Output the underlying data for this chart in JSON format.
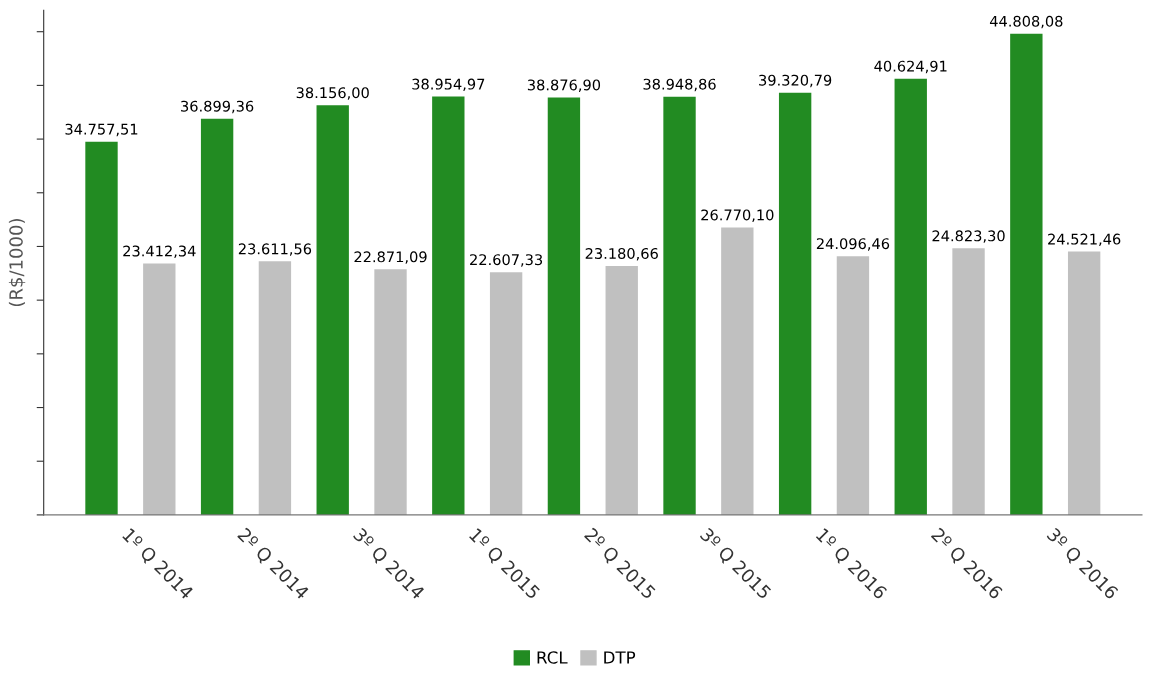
{
  "chart_data": {
    "type": "bar",
    "ylabel": "(R$/1000)",
    "categories": [
      "1º Q 2014",
      "2º Q 2014",
      "3º Q 2014",
      "1º Q 2015",
      "2º Q 2015",
      "3º Q 2015",
      "1º Q 2016",
      "2º Q 2016",
      "3º Q 2016"
    ],
    "series": [
      {
        "name": "RCL",
        "color": "#228b22",
        "values": [
          34757.51,
          36899.36,
          38156.0,
          38954.97,
          38876.9,
          38948.86,
          39320.79,
          40624.91,
          44808.08
        ],
        "value_labels": [
          "34.757,51",
          "36.899,36",
          "38.156,00",
          "38.954,97",
          "38.876,90",
          "38.948,86",
          "39.320,79",
          "40.624,91",
          "44.808,08"
        ]
      },
      {
        "name": "DTP",
        "color": "#c0c0c0",
        "values": [
          23412.34,
          23611.56,
          22871.09,
          22607.33,
          23180.66,
          26770.1,
          24096.46,
          24823.3,
          24521.46
        ],
        "value_labels": [
          "23.412,34",
          "23.611,56",
          "22.871,09",
          "22.607,33",
          "23.180,66",
          "26.770,10",
          "24.096,46",
          "24.823,30",
          "24.521,46"
        ]
      }
    ],
    "ylim": [
      0,
      47000
    ],
    "yticks": [
      {
        "value": 0,
        "label": null
      },
      {
        "value": 5000,
        "label": null
      },
      {
        "value": 10000,
        "label": null
      },
      {
        "value": 15000,
        "label": null
      },
      {
        "value": 20000,
        "label": null
      },
      {
        "value": 25000,
        "label": null
      },
      {
        "value": 30000,
        "label": null
      },
      {
        "value": 35000,
        "label": null
      },
      {
        "value": 40000,
        "label": null
      },
      {
        "value": 45000,
        "label": null
      }
    ],
    "tick_labels": "x",
    "grid": false,
    "legend": "bottom"
  }
}
